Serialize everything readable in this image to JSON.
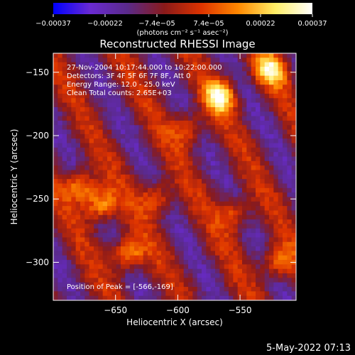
{
  "chart_data": {
    "type": "heatmap",
    "title": "Reconstructed RHESSI Image",
    "xlabel": "Heliocentric X (arcsec)",
    "ylabel": "Heliocentric Y (arcsec)",
    "xlim": [
      -700,
      -505
    ],
    "ylim": [
      -330,
      -135
    ],
    "x_ticks": [
      -650,
      -600,
      -550
    ],
    "x_tick_labels": [
      "−650",
      "−600",
      "−550"
    ],
    "y_ticks": [
      -150,
      -200,
      -250,
      -300
    ],
    "y_tick_labels": [
      "−150",
      "−200",
      "−250",
      "−300"
    ],
    "colorbar": {
      "range": [
        -0.00037,
        0.00037
      ],
      "tick_labels": [
        "−0.00037",
        "−0.00022",
        "−7.4e−05",
        "7.4e−05",
        "0.00022",
        "0.00037"
      ],
      "units": "(photons cm⁻² s⁻¹ asec⁻²)",
      "colormap": [
        "#0000ff",
        "#6a2ad2",
        "#5a2a8a",
        "#8a1a1a",
        "#dd3300",
        "#ff8800",
        "#ffee66",
        "#ffffff"
      ]
    },
    "peaks": [
      {
        "x": -566,
        "y": -169,
        "value": 0.00037
      },
      {
        "x": -525,
        "y": -148,
        "value": 0.00034
      },
      {
        "x": -678,
        "y": -240,
        "value": 0.0003
      },
      {
        "x": -662,
        "y": -255,
        "value": 0.00032
      },
      {
        "x": -640,
        "y": -293,
        "value": 0.00031
      },
      {
        "x": -617,
        "y": -250,
        "value": 0.00024
      },
      {
        "x": -592,
        "y": -195,
        "value": 0.00022
      },
      {
        "x": -555,
        "y": -262,
        "value": 0.00022
      },
      {
        "x": -520,
        "y": -300,
        "value": 0.00026
      }
    ],
    "annotations": [
      "27-Nov-2004 10:17:44.000 to 10:22:00.000",
      "Detectors: 3F 4F 5F 6F 7F 8F, Att 0",
      "Energy Range: 12.0 - 25.0 keV",
      "Clean     Total counts: 2.65E+03",
      "Position of Peak = [-566,-169]"
    ],
    "footer_date": "5-May-2022 07:13"
  }
}
